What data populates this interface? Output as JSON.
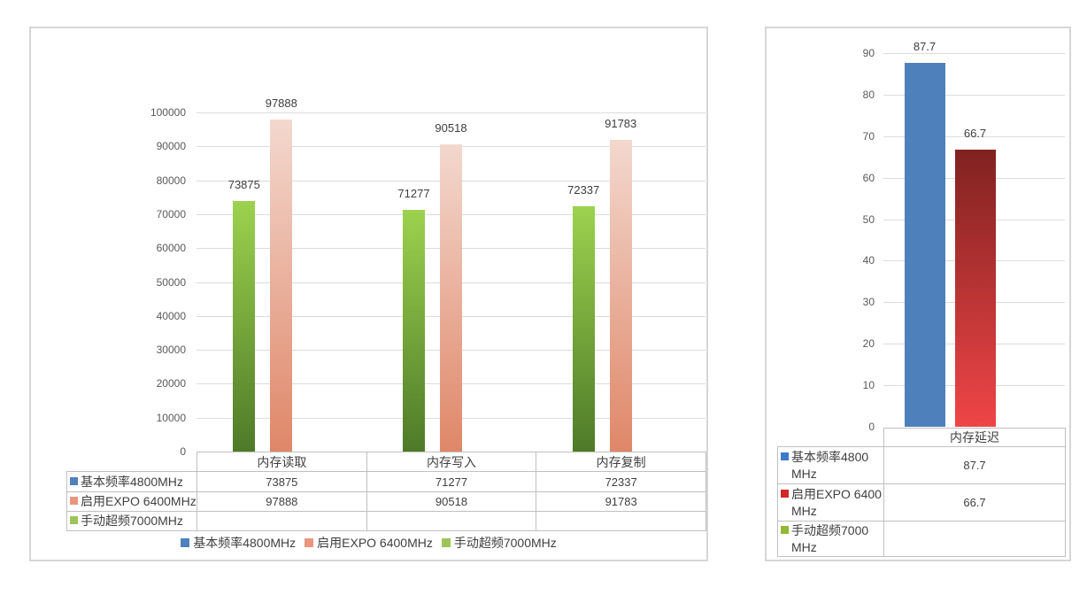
{
  "page": {
    "background": "#ffffff"
  },
  "chart_data": [
    {
      "id": "memory-bandwidth",
      "type": "bar",
      "title": "",
      "categories": [
        "内存读取",
        "内存写入",
        "内存复制"
      ],
      "series": [
        {
          "name": "基本频率4800MHz",
          "values": [
            73875,
            71277,
            72337
          ],
          "marker_color": "#4F81BD",
          "bar_fill_top": "#9CD24E",
          "bar_fill_bottom": "#4E7A28"
        },
        {
          "name": "启用EXPO 6400MHz",
          "values": [
            97888,
            90518,
            91783
          ],
          "marker_color": "#E9967E",
          "bar_fill_top": "#F3D8CE",
          "bar_fill_bottom": "#DF8768"
        },
        {
          "name": "手动超频7000MHz",
          "values": [
            null,
            null,
            null
          ],
          "marker_color": "#9DC459",
          "bar_fill_top": null,
          "bar_fill_bottom": null
        }
      ],
      "ylim": [
        0,
        100000
      ],
      "ytick_step": 10000,
      "ytick_labels": [
        "0",
        "10000",
        "20000",
        "30000",
        "40000",
        "50000",
        "60000",
        "70000",
        "80000",
        "90000",
        "100000"
      ],
      "grid": true,
      "data_labels": true,
      "has_data_table": true,
      "legend_position": "bottom"
    },
    {
      "id": "memory-latency",
      "type": "bar",
      "title": "",
      "categories": [
        "内存延迟"
      ],
      "series": [
        {
          "name": "基本频率4800MHz",
          "label_lines": [
            "基本频率4800",
            "MHz"
          ],
          "values": [
            87.7
          ],
          "marker_color": "#3E79CB",
          "bar_fill_top": "#4E80BC",
          "bar_fill_bottom": "#4E80BC"
        },
        {
          "name": "启用EXPO 6400MHz",
          "label_lines": [
            "启用EXPO 6400",
            "MHz"
          ],
          "values": [
            66.7
          ],
          "marker_color": "#D02628",
          "bar_fill_top": "#802220",
          "bar_fill_bottom": "#EF4547"
        },
        {
          "name": "手动超频7000MHz",
          "label_lines": [
            "手动超频7000",
            "MHz"
          ],
          "values": [
            null
          ],
          "marker_color": "#90BA33",
          "bar_fill_top": null,
          "bar_fill_bottom": null
        }
      ],
      "ylim": [
        0,
        90
      ],
      "ytick_step": 10,
      "ytick_labels": [
        "0",
        "10",
        "20",
        "30",
        "40",
        "50",
        "60",
        "70",
        "80",
        "90"
      ],
      "grid": true,
      "data_labels": true,
      "has_data_table": true,
      "legend_position": "none"
    }
  ]
}
